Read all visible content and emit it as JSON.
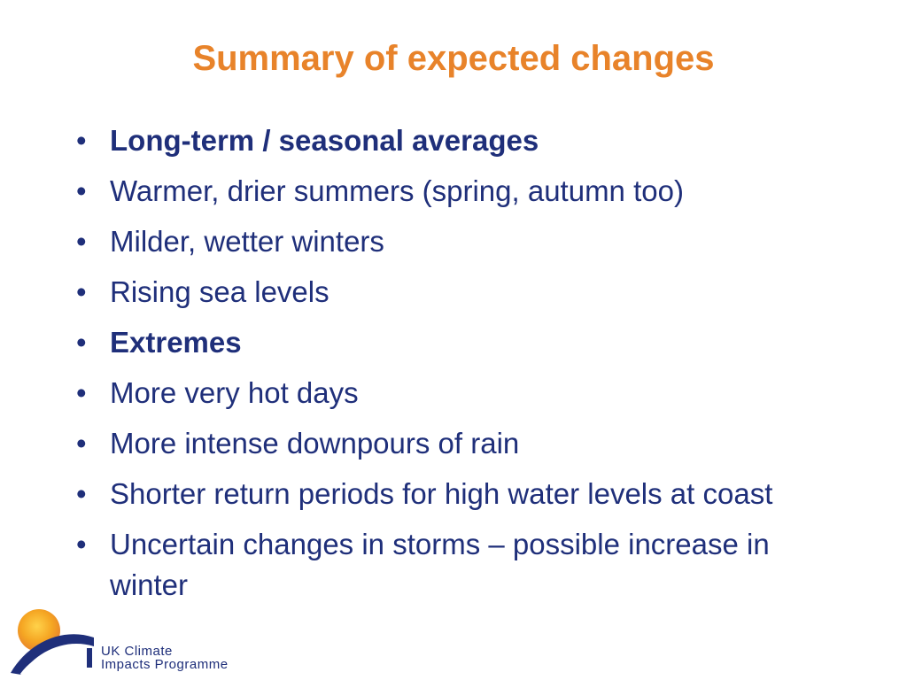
{
  "slide": {
    "title": "Summary of expected changes",
    "bullet_symbol": "•",
    "bullets": [
      {
        "text": "Long-term / seasonal averages",
        "bold": true
      },
      {
        "text": "Warmer, drier summers (spring, autumn too)",
        "bold": false
      },
      {
        "text": "Milder, wetter winters",
        "bold": false
      },
      {
        "text": "Rising sea levels",
        "bold": false
      },
      {
        "text": "Extremes",
        "bold": true
      },
      {
        "text": "More very hot days",
        "bold": false
      },
      {
        "text": "More intense downpours of rain",
        "bold": false
      },
      {
        "text": "Shorter return periods for high water levels at coast",
        "bold": false
      },
      {
        "text": "Uncertain changes in storms – possible increase in winter",
        "bold": false
      }
    ]
  },
  "logo": {
    "line1": "UK Climate",
    "line2": "Impacts Programme"
  },
  "colors": {
    "title": "#E8832A",
    "text": "#1F2F7A",
    "sun": "#F5A623",
    "arc": "#1F2F7A"
  }
}
